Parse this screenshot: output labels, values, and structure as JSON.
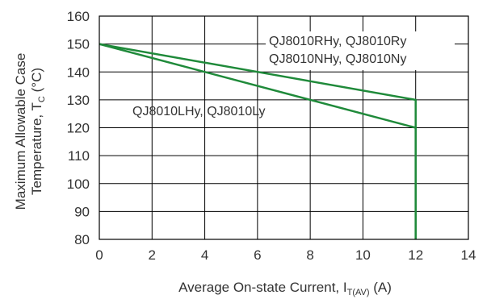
{
  "chart_data": {
    "type": "line",
    "xlabel_main": "Average On-state Current, I",
    "xlabel_sub": "T(AV)",
    "xlabel_unit": " (A)",
    "ylabel_line1": "Maximum Allowable Case",
    "ylabel_line2_main": "Temperature, T",
    "ylabel_line2_sub": "C",
    "ylabel_line2_unit": " (°C)",
    "xlim": [
      0,
      14
    ],
    "ylim": [
      80,
      160
    ],
    "x_ticks": [
      0,
      2,
      4,
      6,
      8,
      10,
      12,
      14
    ],
    "y_ticks": [
      80,
      90,
      100,
      110,
      120,
      130,
      140,
      150,
      160
    ],
    "grid": true,
    "color": "#1f8a3a",
    "series": [
      {
        "name": "QJ8010RHy, QJ8010Ry QJ8010NHy, QJ8010Ny",
        "label_lines": [
          "QJ8010RHy, QJ8010Ry",
          "QJ8010NHy, QJ8010Ny"
        ],
        "x": [
          0,
          12,
          12
        ],
        "y": [
          150,
          130,
          80
        ]
      },
      {
        "name": "QJ8010LHy, QJ8010Ly",
        "label_lines": [
          "QJ8010LHy, QJ8010Ly"
        ],
        "x": [
          0,
          12,
          12
        ],
        "y": [
          150,
          120,
          80
        ]
      }
    ]
  }
}
